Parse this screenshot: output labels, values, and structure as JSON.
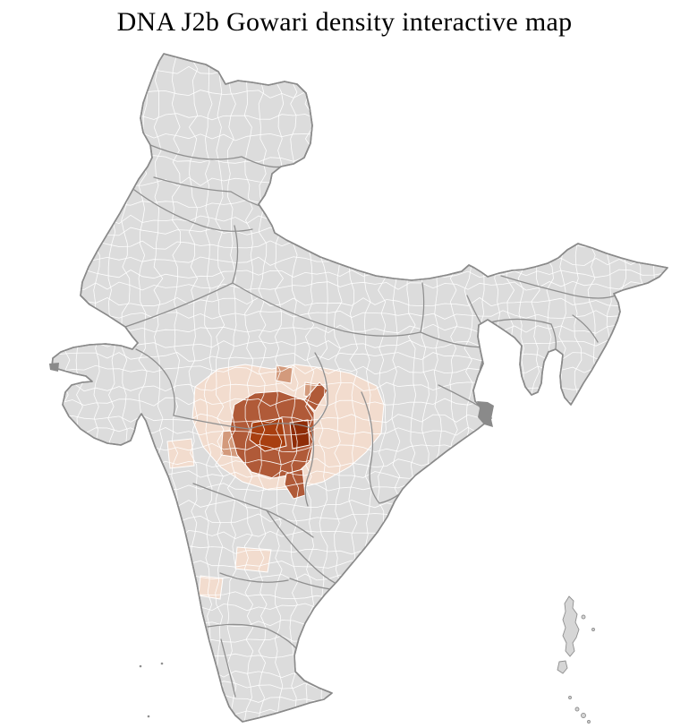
{
  "title": "DNA J2b Gowari density interactive map",
  "map": {
    "region": "India",
    "palette": {
      "land": "#dcdcdc",
      "district_border": "#ffffff",
      "state_border": "#8f8f8f",
      "country_outline": "#8a8a8a",
      "delta": "#8a8a8a",
      "island": "#d6d6d6",
      "density_low": "#f2dcce",
      "density_medium": "#d39a7c",
      "density_high": "#b05a38",
      "density_highest_west": "#a83f10",
      "density_highest_east": "#8f2c07"
    }
  }
}
